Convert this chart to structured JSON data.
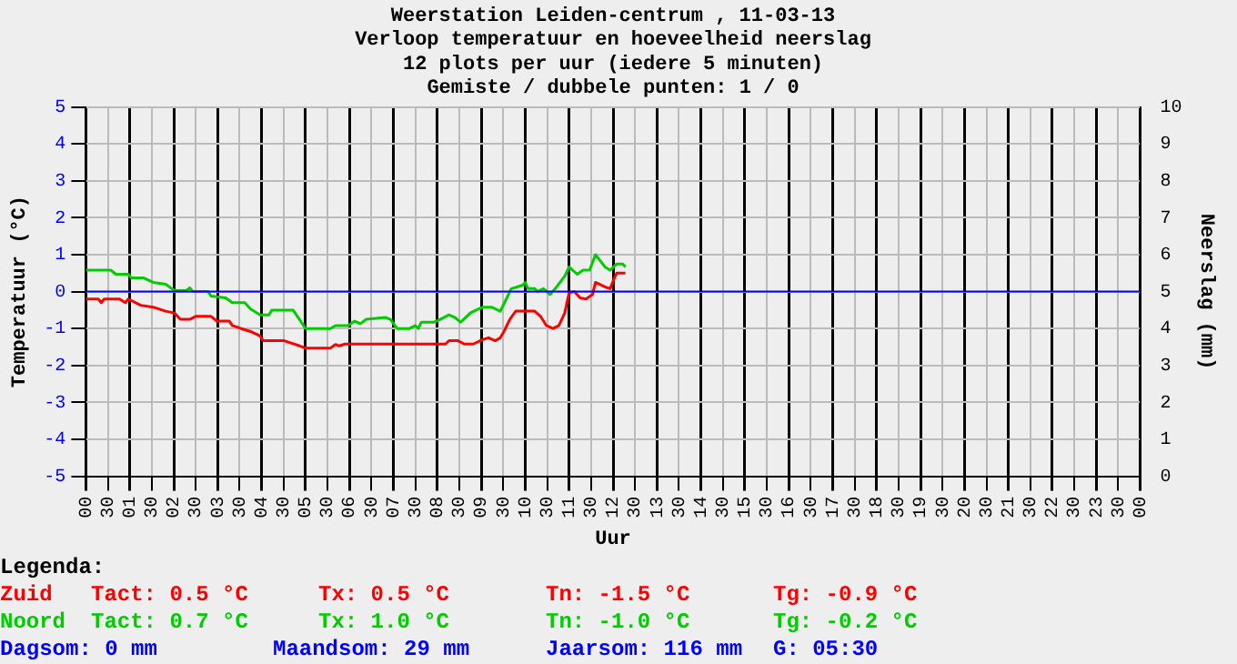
{
  "chart_data": {
    "type": "line",
    "title": "Weerstation Leiden-centrum , 11-03-13",
    "subtitle": "Verloop temperatuur en hoeveelheid neerslag\n12 plots per uur (iedere 5 minuten)\nGemiste / dubbele punten: 1 / 0",
    "xlabel": "Uur",
    "ylabel": "Temperatuur (°C)",
    "y2label": "Neerslag (mm)",
    "legend_title": "Legenda:",
    "legend": "bottom",
    "grid": true,
    "marker": "none",
    "line_style": "solid",
    "xlim": [
      "--03-11T00:00",
      "--03-12T00:00"
    ],
    "xticks": [
      {
        "value": "--03-11T00:00",
        "label": "00"
      },
      {
        "value": "--03-11T00:30",
        "label": "30"
      },
      {
        "value": "--03-11T01:00",
        "label": "01"
      },
      {
        "value": "--03-11T01:30",
        "label": "30"
      },
      {
        "value": "--03-11T02:00",
        "label": "02"
      },
      {
        "value": "--03-11T02:30",
        "label": "30"
      },
      {
        "value": "--03-11T03:00",
        "label": "03"
      },
      {
        "value": "--03-11T03:30",
        "label": "30"
      },
      {
        "value": "--03-11T04:00",
        "label": "04"
      },
      {
        "value": "--03-11T04:30",
        "label": "30"
      },
      {
        "value": "--03-11T05:00",
        "label": "05"
      },
      {
        "value": "--03-11T05:30",
        "label": "30"
      },
      {
        "value": "--03-11T06:00",
        "label": "06"
      },
      {
        "value": "--03-11T06:30",
        "label": "30"
      },
      {
        "value": "--03-11T07:00",
        "label": "07"
      },
      {
        "value": "--03-11T07:30",
        "label": "30"
      },
      {
        "value": "--03-11T08:00",
        "label": "08"
      },
      {
        "value": "--03-11T08:30",
        "label": "30"
      },
      {
        "value": "--03-11T09:00",
        "label": "09"
      },
      {
        "value": "--03-11T09:30",
        "label": "30"
      },
      {
        "value": "--03-11T10:00",
        "label": "10"
      },
      {
        "value": "--03-11T10:30",
        "label": "30"
      },
      {
        "value": "--03-11T11:00",
        "label": "11"
      },
      {
        "value": "--03-11T11:30",
        "label": "30"
      },
      {
        "value": "--03-11T12:00",
        "label": "12"
      },
      {
        "value": "--03-11T12:30",
        "label": "30"
      },
      {
        "value": "--03-11T13:00",
        "label": "13"
      },
      {
        "value": "--03-11T13:30",
        "label": "30"
      },
      {
        "value": "--03-11T14:00",
        "label": "14"
      },
      {
        "value": "--03-11T14:30",
        "label": "30"
      },
      {
        "value": "--03-11T15:00",
        "label": "15"
      },
      {
        "value": "--03-11T15:30",
        "label": "30"
      },
      {
        "value": "--03-11T16:00",
        "label": "16"
      },
      {
        "value": "--03-11T16:30",
        "label": "30"
      },
      {
        "value": "--03-11T17:00",
        "label": "17"
      },
      {
        "value": "--03-11T17:30",
        "label": "30"
      },
      {
        "value": "--03-11T18:00",
        "label": "18"
      },
      {
        "value": "--03-11T18:30",
        "label": "30"
      },
      {
        "value": "--03-11T19:00",
        "label": "19"
      },
      {
        "value": "--03-11T19:30",
        "label": "30"
      },
      {
        "value": "--03-11T20:00",
        "label": "20"
      },
      {
        "value": "--03-11T20:30",
        "label": "30"
      },
      {
        "value": "--03-11T21:00",
        "label": "21"
      },
      {
        "value": "--03-11T21:30",
        "label": "30"
      },
      {
        "value": "--03-11T22:00",
        "label": "22"
      },
      {
        "value": "--03-11T22:30",
        "label": "30"
      },
      {
        "value": "--03-11T23:00",
        "label": "23"
      },
      {
        "value": "--03-11T23:30",
        "label": "30"
      },
      {
        "value": "--03-12T00:00",
        "label": "00"
      }
    ],
    "ylim": [
      -5,
      5
    ],
    "yticks": [
      -5,
      -4,
      -3,
      -2,
      -1,
      0,
      1,
      2,
      3,
      4,
      5
    ],
    "y2lim": [
      0,
      10
    ],
    "y2ticks": [
      0,
      1,
      2,
      3,
      4,
      5,
      6,
      7,
      8,
      9,
      10
    ],
    "ref_lines": [
      {
        "axis": "y",
        "value": 0,
        "color": "#0000ff"
      }
    ],
    "series": [
      {
        "name": "Zuid",
        "color": "#ff0000",
        "x": [
          "--03-11T00:00",
          "--03-11T00:17",
          "--03-11T00:21",
          "--03-11T00:25",
          "--03-11T00:46",
          "--03-11T00:54",
          "--03-11T00:58",
          "--03-11T01:15",
          "--03-11T01:32",
          "--03-11T01:49",
          "--03-11T02:01",
          "--03-11T02:09",
          "--03-11T02:22",
          "--03-11T02:30",
          "--03-11T02:51",
          "--03-11T02:59",
          "--03-11T03:16",
          "--03-11T03:20",
          "--03-11T03:32",
          "--03-11T03:45",
          "--03-11T03:58",
          "--03-11T04:02",
          "--03-11T04:31",
          "--03-11T04:52",
          "--03-11T05:00",
          "--03-11T05:34",
          "--03-11T05:41",
          "--03-11T05:46",
          "--03-11T05:54",
          "--03-11T08:11",
          "--03-11T08:16",
          "--03-11T08:28",
          "--03-11T08:37",
          "--03-11T08:49",
          "--03-11T09:02",
          "--03-11T09:10",
          "--03-11T09:19",
          "--03-11T09:26",
          "--03-11T09:31",
          "--03-11T09:39",
          "--03-11T09:47",
          "--03-11T10:13",
          "--03-11T10:21",
          "--03-11T10:29",
          "--03-11T10:38",
          "--03-11T10:46",
          "--03-11T10:54",
          "--03-11T11:00",
          "--03-11T11:07",
          "--03-11T11:15",
          "--03-11T11:23",
          "--03-11T11:32",
          "--03-11T11:36",
          "--03-11T11:49",
          "--03-11T11:56",
          "--03-11T12:01",
          "--03-11T12:05",
          "--03-11T12:17"
        ],
        "values": [
          -0.2,
          -0.2,
          -0.3,
          -0.2,
          -0.2,
          -0.3,
          -0.2,
          -0.37,
          -0.42,
          -0.53,
          -0.58,
          -0.75,
          -0.75,
          -0.67,
          -0.67,
          -0.8,
          -0.8,
          -0.92,
          -1.0,
          -1.08,
          -1.2,
          -1.33,
          -1.33,
          -1.47,
          -1.53,
          -1.53,
          -1.43,
          -1.47,
          -1.42,
          -1.42,
          -1.33,
          -1.33,
          -1.42,
          -1.42,
          -1.3,
          -1.25,
          -1.33,
          -1.25,
          -1.08,
          -0.75,
          -0.53,
          -0.53,
          -0.67,
          -0.92,
          -1.0,
          -0.92,
          -0.58,
          -0.03,
          0,
          -0.17,
          -0.2,
          -0.08,
          0.25,
          0.13,
          0.08,
          0.33,
          0.5,
          0.5
        ]
      },
      {
        "name": "Noord",
        "color": "#00cc00",
        "x": [
          "--03-11T00:00",
          "--03-11T00:34",
          "--03-11T00:41",
          "--03-11T00:58",
          "--03-11T01:02",
          "--03-11T01:19",
          "--03-11T01:32",
          "--03-11T01:49",
          "--03-11T02:01",
          "--03-11T02:17",
          "--03-11T02:22",
          "--03-11T02:26",
          "--03-11T02:47",
          "--03-11T02:51",
          "--03-11T03:11",
          "--03-11T03:20",
          "--03-11T03:37",
          "--03-11T03:45",
          "--03-11T03:58",
          "--03-11T04:10",
          "--03-11T04:14",
          "--03-11T04:43",
          "--03-11T05:00",
          "--03-11T05:34",
          "--03-11T05:41",
          "--03-11T05:58",
          "--03-11T06:07",
          "--03-11T06:15",
          "--03-11T06:23",
          "--03-11T06:49",
          "--03-11T06:56",
          "--03-11T07:05",
          "--03-11T07:22",
          "--03-11T07:30",
          "--03-11T07:34",
          "--03-11T07:38",
          "--03-11T07:55",
          "--03-11T08:04",
          "--03-11T08:16",
          "--03-11T08:24",
          "--03-11T08:32",
          "--03-11T08:45",
          "--03-11T08:53",
          "--03-11T09:02",
          "--03-11T09:14",
          "--03-11T09:26",
          "--03-11T09:35",
          "--03-11T09:41",
          "--03-11T09:56",
          "--03-11T10:00",
          "--03-11T10:04",
          "--03-11T10:13",
          "--03-11T10:17",
          "--03-11T10:25",
          "--03-11T10:34",
          "--03-11T10:41",
          "--03-11T10:54",
          "--03-11T11:00",
          "--03-11T11:11",
          "--03-11T11:19",
          "--03-11T11:28",
          "--03-11T11:36",
          "--03-11T11:49",
          "--03-11T11:56",
          "--03-11T12:05",
          "--03-11T12:13",
          "--03-11T12:17"
        ],
        "values": [
          0.58,
          0.58,
          0.47,
          0.47,
          0.37,
          0.37,
          0.25,
          0.2,
          0.03,
          0.03,
          0.1,
          0,
          0,
          -0.12,
          -0.17,
          -0.3,
          -0.3,
          -0.47,
          -0.63,
          -0.63,
          -0.5,
          -0.5,
          -1.0,
          -1.0,
          -0.92,
          -0.92,
          -0.8,
          -0.87,
          -0.75,
          -0.7,
          -0.75,
          -1.0,
          -1.0,
          -0.92,
          -1.0,
          -0.83,
          -0.83,
          -0.75,
          -0.63,
          -0.7,
          -0.83,
          -0.58,
          -0.5,
          -0.42,
          -0.42,
          -0.53,
          -0.17,
          0.08,
          0.17,
          0.25,
          0.08,
          0.08,
          0,
          0.08,
          -0.08,
          0.08,
          0.42,
          0.67,
          0.47,
          0.58,
          0.58,
          1.0,
          0.67,
          0.58,
          0.75,
          0.75,
          0.67
        ]
      }
    ],
    "annotations": [
      "Tact: 0.5 °C",
      "Tx: 0.5 °C",
      "Tn: -1.5 °C",
      "Tg: -0.9 °C",
      "Tact: 0.7 °C",
      "Tx: 1.0 °C",
      "Tn: -1.0 °C",
      "Tg: -0.2 °C",
      "Dagsom: 0 mm",
      "Maandsom: 29 mm",
      "Jaarsom: 116 mm",
      "G: 05:30"
    ]
  }
}
